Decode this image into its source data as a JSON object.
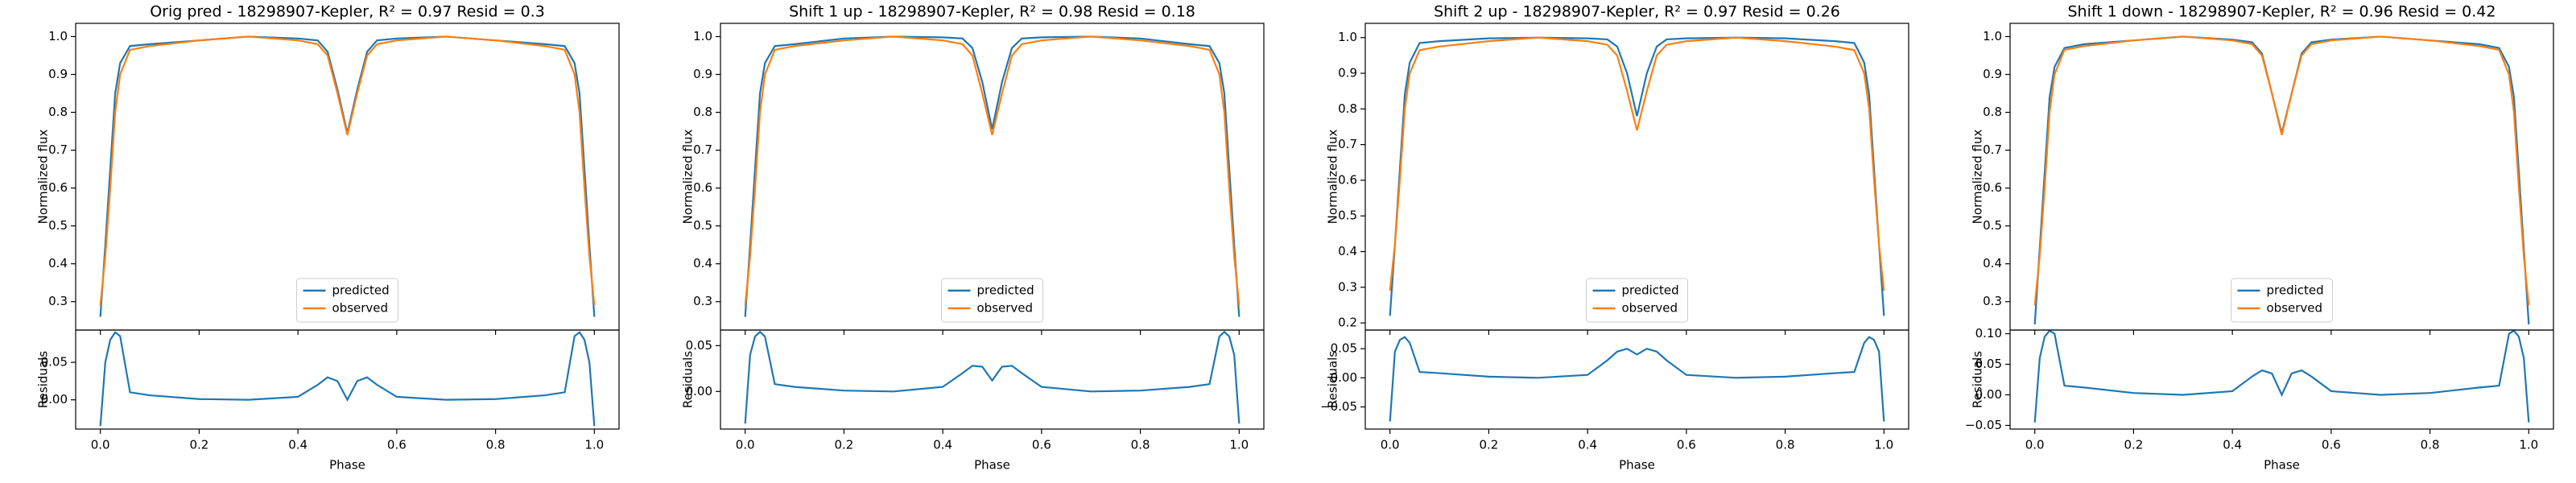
{
  "chart_data": [
    {
      "type": "line",
      "title": "Orig pred - 18298907-Kepler, R² = 0.97 Resid = 0.3",
      "x": [
        0,
        0.01,
        0.02,
        0.03,
        0.04,
        0.06,
        0.1,
        0.2,
        0.3,
        0.4,
        0.44,
        0.46,
        0.48,
        0.5,
        0.52,
        0.54,
        0.56,
        0.6,
        0.7,
        0.8,
        0.9,
        0.94,
        0.96,
        0.97,
        0.98,
        0.99,
        1.0
      ],
      "xlim": [
        -0.05,
        1.05
      ],
      "xticks": [
        {
          "value": 0,
          "label": "0.0"
        },
        0.2,
        0.4,
        0.6,
        0.8,
        {
          "value": 1,
          "label": "1.0"
        }
      ],
      "xlabel": "Phase",
      "ylabel": "Normalized flux",
      "ylim": [
        0.225,
        1.035
      ],
      "yticks": [
        0.3,
        0.4,
        0.5,
        0.6,
        0.7,
        0.8,
        0.9,
        {
          "value": 1,
          "label": "1.0"
        }
      ],
      "legend": "lower center",
      "series": [
        {
          "name": "predicted",
          "color": "#1f77b4",
          "values": [
            0.26,
            0.45,
            0.65,
            0.85,
            0.93,
            0.975,
            0.98,
            0.99,
            1.0,
            0.995,
            0.99,
            0.96,
            0.86,
            0.745,
            0.86,
            0.96,
            0.99,
            0.995,
            1.0,
            0.99,
            0.98,
            0.975,
            0.93,
            0.85,
            0.65,
            0.45,
            0.26
          ]
        },
        {
          "name": "observed",
          "color": "#ff7f0e",
          "values": [
            0.29,
            0.42,
            0.6,
            0.8,
            0.9,
            0.965,
            0.975,
            0.99,
            1.0,
            0.99,
            0.98,
            0.95,
            0.85,
            0.74,
            0.85,
            0.95,
            0.98,
            0.99,
            1.0,
            0.99,
            0.975,
            0.965,
            0.9,
            0.8,
            0.6,
            0.42,
            0.29
          ]
        }
      ],
      "residuals": {
        "type": "line",
        "ylabel": "Residuals",
        "color": "#1f77b4",
        "values": [
          -0.035,
          0.05,
          0.08,
          0.09,
          0.085,
          0.01,
          0.006,
          0.001,
          0.0,
          0.004,
          0.02,
          0.03,
          0.025,
          0.0,
          0.025,
          0.03,
          0.02,
          0.004,
          0.0,
          0.001,
          0.006,
          0.01,
          0.085,
          0.09,
          0.08,
          0.05,
          -0.035
        ],
        "ylim": [
          -0.039,
          0.093
        ],
        "yticks": [
          {
            "value": 0,
            "label": "0.00"
          },
          0.05
        ]
      }
    },
    {
      "type": "line",
      "title": "Shift 1 up - 18298907-Kepler, R² = 0.98 Resid = 0.18",
      "x": [
        0,
        0.01,
        0.02,
        0.03,
        0.04,
        0.06,
        0.1,
        0.2,
        0.3,
        0.4,
        0.44,
        0.46,
        0.48,
        0.5,
        0.52,
        0.54,
        0.56,
        0.6,
        0.7,
        0.8,
        0.9,
        0.94,
        0.96,
        0.97,
        0.98,
        0.99,
        1.0
      ],
      "xlim": [
        -0.05,
        1.05
      ],
      "xticks": [
        {
          "value": 0,
          "label": "0.0"
        },
        0.2,
        0.4,
        0.6,
        0.8,
        {
          "value": 1,
          "label": "1.0"
        }
      ],
      "xlabel": "Phase",
      "ylabel": "Normalized flux",
      "ylim": [
        0.225,
        1.035
      ],
      "yticks": [
        0.3,
        0.4,
        0.5,
        0.6,
        0.7,
        0.8,
        0.9,
        {
          "value": 1,
          "label": "1.0"
        }
      ],
      "legend": "lower center",
      "series": [
        {
          "name": "predicted",
          "color": "#1f77b4",
          "values": [
            0.26,
            0.45,
            0.65,
            0.85,
            0.93,
            0.975,
            0.98,
            0.995,
            1.0,
            0.998,
            0.995,
            0.97,
            0.88,
            0.755,
            0.88,
            0.97,
            0.995,
            0.998,
            1.0,
            0.995,
            0.98,
            0.975,
            0.93,
            0.85,
            0.65,
            0.45,
            0.26
          ]
        },
        {
          "name": "observed",
          "color": "#ff7f0e",
          "values": [
            0.29,
            0.42,
            0.6,
            0.8,
            0.9,
            0.965,
            0.975,
            0.99,
            1.0,
            0.99,
            0.98,
            0.95,
            0.85,
            0.74,
            0.85,
            0.95,
            0.98,
            0.99,
            1.0,
            0.99,
            0.975,
            0.965,
            0.9,
            0.8,
            0.6,
            0.42,
            0.29
          ]
        }
      ],
      "residuals": {
        "type": "line",
        "ylabel": "Residuals",
        "color": "#1f77b4",
        "values": [
          -0.035,
          0.04,
          0.06,
          0.065,
          0.06,
          0.008,
          0.005,
          0.001,
          0.0,
          0.005,
          0.02,
          0.028,
          0.027,
          0.012,
          0.027,
          0.028,
          0.02,
          0.005,
          0.0,
          0.001,
          0.005,
          0.008,
          0.06,
          0.065,
          0.06,
          0.04,
          -0.035
        ],
        "ylim": [
          -0.041,
          0.067
        ],
        "yticks": [
          {
            "value": 0,
            "label": "0.00"
          },
          0.05
        ]
      }
    },
    {
      "type": "line",
      "title": "Shift 2 up - 18298907-Kepler, R² = 0.97 Resid = 0.26",
      "x": [
        0,
        0.01,
        0.02,
        0.03,
        0.04,
        0.06,
        0.1,
        0.2,
        0.3,
        0.4,
        0.44,
        0.46,
        0.48,
        0.5,
        0.52,
        0.54,
        0.56,
        0.6,
        0.7,
        0.8,
        0.9,
        0.94,
        0.96,
        0.97,
        0.98,
        0.99,
        1.0
      ],
      "xlim": [
        -0.05,
        1.05
      ],
      "xticks": [
        {
          "value": 0,
          "label": "0.0"
        },
        0.2,
        0.4,
        0.6,
        0.8,
        {
          "value": 1,
          "label": "1.0"
        }
      ],
      "xlabel": "Phase",
      "ylabel": "Normalized flux",
      "ylim": [
        0.18,
        1.04
      ],
      "yticks": [
        0.2,
        0.3,
        0.4,
        0.5,
        0.6,
        0.7,
        0.8,
        0.9,
        {
          "value": 1,
          "label": "1.0"
        }
      ],
      "legend": "lower center",
      "series": [
        {
          "name": "predicted",
          "color": "#1f77b4",
          "values": [
            0.22,
            0.42,
            0.63,
            0.84,
            0.93,
            0.985,
            0.99,
            0.998,
            1.0,
            0.998,
            0.995,
            0.975,
            0.9,
            0.78,
            0.9,
            0.975,
            0.995,
            0.998,
            1.0,
            0.998,
            0.99,
            0.985,
            0.93,
            0.84,
            0.63,
            0.42,
            0.22
          ]
        },
        {
          "name": "observed",
          "color": "#ff7f0e",
          "values": [
            0.29,
            0.42,
            0.6,
            0.8,
            0.9,
            0.965,
            0.975,
            0.99,
            1.0,
            0.99,
            0.98,
            0.95,
            0.85,
            0.74,
            0.85,
            0.95,
            0.98,
            0.99,
            1.0,
            0.99,
            0.975,
            0.965,
            0.9,
            0.8,
            0.6,
            0.42,
            0.29
          ]
        }
      ],
      "residuals": {
        "type": "line",
        "ylabel": "Residuals",
        "color": "#1f77b4",
        "values": [
          -0.075,
          0.045,
          0.065,
          0.07,
          0.06,
          0.01,
          0.008,
          0.002,
          0.0,
          0.005,
          0.03,
          0.045,
          0.05,
          0.04,
          0.05,
          0.045,
          0.03,
          0.005,
          0.0,
          0.002,
          0.008,
          0.01,
          0.06,
          0.07,
          0.065,
          0.045,
          -0.075
        ],
        "ylim": [
          -0.088,
          0.082
        ],
        "yticks": [
          {
            "value": -0.05,
            "label": "−0.05"
          },
          {
            "value": 0,
            "label": "0.00"
          },
          0.05
        ]
      }
    },
    {
      "type": "line",
      "title": "Shift 1 down - 18298907-Kepler, R² = 0.96 Resid = 0.42",
      "x": [
        0,
        0.01,
        0.02,
        0.03,
        0.04,
        0.06,
        0.1,
        0.2,
        0.3,
        0.4,
        0.44,
        0.46,
        0.48,
        0.5,
        0.52,
        0.54,
        0.56,
        0.6,
        0.7,
        0.8,
        0.9,
        0.94,
        0.96,
        0.97,
        0.98,
        0.99,
        1.0
      ],
      "xlim": [
        -0.05,
        1.05
      ],
      "xticks": [
        {
          "value": 0,
          "label": "0.0"
        },
        0.2,
        0.4,
        0.6,
        0.8,
        {
          "value": 1,
          "label": "1.0"
        }
      ],
      "xlabel": "Phase",
      "ylabel": "Normalized flux",
      "ylim": [
        0.225,
        1.035
      ],
      "yticks": [
        0.3,
        0.4,
        0.5,
        0.6,
        0.7,
        0.8,
        0.9,
        {
          "value": 1,
          "label": "1.0"
        }
      ],
      "legend": "lower center",
      "series": [
        {
          "name": "predicted",
          "color": "#1f77b4",
          "values": [
            0.24,
            0.44,
            0.64,
            0.84,
            0.92,
            0.97,
            0.98,
            0.99,
            1.0,
            0.992,
            0.985,
            0.955,
            0.85,
            0.745,
            0.85,
            0.955,
            0.985,
            0.992,
            1.0,
            0.99,
            0.98,
            0.97,
            0.92,
            0.84,
            0.64,
            0.44,
            0.24
          ]
        },
        {
          "name": "observed",
          "color": "#ff7f0e",
          "values": [
            0.29,
            0.42,
            0.6,
            0.8,
            0.9,
            0.965,
            0.975,
            0.99,
            1.0,
            0.99,
            0.98,
            0.95,
            0.85,
            0.74,
            0.85,
            0.95,
            0.98,
            0.99,
            1.0,
            0.99,
            0.975,
            0.965,
            0.9,
            0.8,
            0.6,
            0.42,
            0.29
          ]
        }
      ],
      "residuals": {
        "type": "line",
        "ylabel": "Residuals",
        "color": "#1f77b4",
        "values": [
          -0.045,
          0.06,
          0.095,
          0.105,
          0.1,
          0.015,
          0.012,
          0.003,
          0.0,
          0.006,
          0.03,
          0.04,
          0.035,
          0.0,
          0.035,
          0.04,
          0.03,
          0.006,
          0.0,
          0.003,
          0.012,
          0.015,
          0.1,
          0.105,
          0.095,
          0.06,
          -0.045
        ],
        "ylim": [
          -0.056,
          0.106
        ],
        "yticks": [
          {
            "value": -0.05,
            "label": "−0.05"
          },
          {
            "value": 0,
            "label": "0.00"
          },
          0.05,
          {
            "value": 0.1,
            "label": "0.10"
          }
        ]
      }
    }
  ]
}
